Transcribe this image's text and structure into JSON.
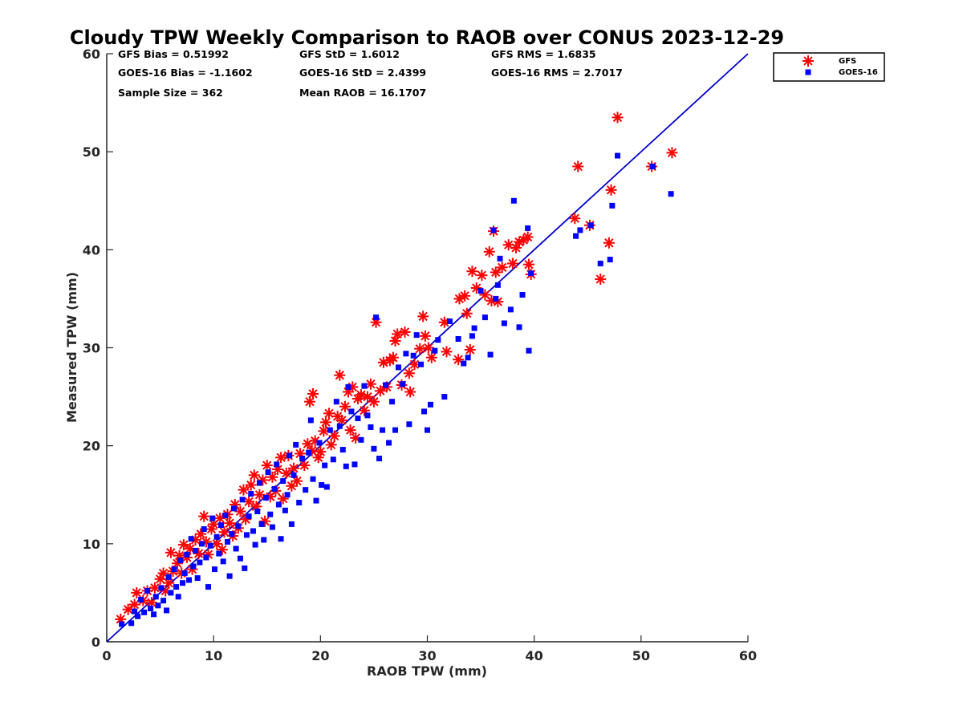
{
  "chart_data": {
    "type": "scatter",
    "title": "Cloudy TPW Weekly Comparison to RAOB over CONUS 2023-12-29",
    "xlabel": "RAOB TPW (mm)",
    "ylabel": "Measured TPW (mm)",
    "xlim": [
      0,
      60
    ],
    "ylim": [
      0,
      60
    ],
    "xticks": [
      "0",
      "10",
      "20",
      "30",
      "40",
      "50",
      "60"
    ],
    "yticks": [
      "0",
      "10",
      "20",
      "30",
      "40",
      "50",
      "60"
    ],
    "grid": false,
    "legend_position": "outside-top-right",
    "reference_line": {
      "x": [
        0,
        60
      ],
      "y": [
        0,
        60
      ],
      "color": "#0000cc"
    },
    "stats": {
      "gfs_bias": "GFS Bias = 0.51992",
      "gfs_std": "GFS StD = 1.6012",
      "gfs_rms": "GFS RMS = 1.6835",
      "goes_bias": "GOES-16 Bias = -1.1602",
      "goes_std": "GOES-16 StD = 2.4399",
      "goes_rms": "GOES-16 RMS = 2.7017",
      "sample_size": "Sample Size = 362",
      "mean_raob": "Mean RAOB = 16.1707"
    },
    "series": [
      {
        "name": "GFS",
        "marker": "asterisk",
        "color": "#ff0000",
        "points": [
          [
            1.3,
            2.3
          ],
          [
            2.0,
            3.3
          ],
          [
            2.6,
            3.8
          ],
          [
            2.8,
            5.0
          ],
          [
            3.4,
            4.2
          ],
          [
            3.8,
            5.2
          ],
          [
            4.2,
            4.0
          ],
          [
            4.5,
            5.5
          ],
          [
            5.0,
            6.4
          ],
          [
            5.3,
            7.0
          ],
          [
            5.5,
            5.2
          ],
          [
            5.8,
            6.0
          ],
          [
            6.0,
            9.1
          ],
          [
            6.2,
            7.2
          ],
          [
            6.6,
            8.0
          ],
          [
            6.8,
            8.8
          ],
          [
            7.0,
            7.0
          ],
          [
            7.2,
            9.9
          ],
          [
            7.5,
            8.6
          ],
          [
            7.8,
            9.5
          ],
          [
            8.0,
            7.4
          ],
          [
            8.3,
            10.4
          ],
          [
            8.6,
            9.0
          ],
          [
            8.8,
            11.0
          ],
          [
            9.1,
            12.8
          ],
          [
            9.3,
            10.2
          ],
          [
            9.5,
            8.9
          ],
          [
            9.8,
            11.5
          ],
          [
            10.0,
            12.0
          ],
          [
            10.3,
            10.0
          ],
          [
            10.6,
            12.6
          ],
          [
            10.8,
            9.4
          ],
          [
            11.0,
            11.2
          ],
          [
            11.3,
            13.0
          ],
          [
            11.5,
            12.1
          ],
          [
            11.8,
            10.8
          ],
          [
            12.0,
            14.0
          ],
          [
            12.3,
            11.6
          ],
          [
            12.5,
            13.3
          ],
          [
            12.8,
            15.5
          ],
          [
            13.0,
            12.5
          ],
          [
            13.3,
            14.3
          ],
          [
            13.5,
            16.0
          ],
          [
            13.8,
            17.0
          ],
          [
            14.0,
            13.8
          ],
          [
            14.3,
            15.0
          ],
          [
            14.6,
            16.5
          ],
          [
            14.8,
            12.3
          ],
          [
            15.0,
            18.0
          ],
          [
            15.3,
            14.8
          ],
          [
            15.5,
            16.8
          ],
          [
            15.8,
            15.4
          ],
          [
            16.0,
            17.6
          ],
          [
            16.3,
            18.8
          ],
          [
            16.5,
            14.6
          ],
          [
            16.8,
            17.2
          ],
          [
            17.0,
            19.0
          ],
          [
            17.3,
            15.9
          ],
          [
            17.5,
            17.7
          ],
          [
            17.8,
            16.4
          ],
          [
            18.1,
            19.2
          ],
          [
            18.5,
            18.0
          ],
          [
            18.8,
            20.2
          ],
          [
            19.0,
            24.5
          ],
          [
            19.2,
            19.5
          ],
          [
            19.3,
            25.3
          ],
          [
            19.5,
            20.5
          ],
          [
            19.8,
            18.8
          ],
          [
            20.0,
            19.4
          ],
          [
            20.3,
            21.5
          ],
          [
            20.5,
            22.4
          ],
          [
            20.8,
            23.3
          ],
          [
            21.0,
            20.1
          ],
          [
            21.3,
            21.0
          ],
          [
            21.6,
            23.0
          ],
          [
            21.8,
            27.2
          ],
          [
            22.0,
            22.6
          ],
          [
            22.3,
            24.0
          ],
          [
            22.6,
            25.5
          ],
          [
            22.8,
            21.6
          ],
          [
            23.0,
            26.0
          ],
          [
            23.3,
            20.8
          ],
          [
            23.5,
            24.8
          ],
          [
            23.8,
            25.2
          ],
          [
            24.1,
            23.6
          ],
          [
            24.4,
            25.0
          ],
          [
            24.7,
            26.3
          ],
          [
            25.0,
            24.5
          ],
          [
            25.2,
            32.6
          ],
          [
            25.6,
            25.6
          ],
          [
            25.9,
            28.5
          ],
          [
            26.2,
            26.0
          ],
          [
            26.5,
            28.7
          ],
          [
            26.8,
            29.0
          ],
          [
            27.0,
            30.7
          ],
          [
            27.2,
            31.4
          ],
          [
            27.6,
            26.2
          ],
          [
            27.9,
            31.6
          ],
          [
            28.3,
            27.4
          ],
          [
            28.4,
            25.5
          ],
          [
            28.8,
            28.3
          ],
          [
            29.3,
            29.9
          ],
          [
            29.6,
            33.2
          ],
          [
            29.8,
            31.2
          ],
          [
            30.1,
            30.0
          ],
          [
            30.4,
            29.0
          ],
          [
            31.6,
            32.6
          ],
          [
            31.8,
            29.6
          ],
          [
            32.9,
            28.8
          ],
          [
            33.0,
            35.0
          ],
          [
            33.5,
            35.3
          ],
          [
            33.7,
            33.5
          ],
          [
            34.0,
            29.8
          ],
          [
            34.2,
            37.8
          ],
          [
            34.6,
            36.1
          ],
          [
            35.1,
            37.4
          ],
          [
            35.4,
            35.4
          ],
          [
            35.8,
            39.8
          ],
          [
            36.0,
            34.8
          ],
          [
            36.2,
            41.9
          ],
          [
            36.4,
            37.7
          ],
          [
            36.6,
            34.7
          ],
          [
            37.0,
            38.2
          ],
          [
            37.6,
            40.5
          ],
          [
            38.0,
            38.6
          ],
          [
            38.3,
            40.2
          ],
          [
            38.6,
            40.8
          ],
          [
            39.0,
            41.0
          ],
          [
            39.4,
            41.3
          ],
          [
            39.5,
            38.5
          ],
          [
            39.7,
            37.5
          ],
          [
            43.8,
            43.2
          ],
          [
            44.1,
            48.5
          ],
          [
            45.2,
            42.5
          ],
          [
            46.2,
            37.0
          ],
          [
            47.0,
            40.7
          ],
          [
            47.2,
            46.1
          ],
          [
            47.8,
            53.5
          ],
          [
            51.0,
            48.5
          ],
          [
            52.9,
            49.9
          ]
        ]
      },
      {
        "name": "GOES-16",
        "marker": "square",
        "color": "#0000ff",
        "points": [
          [
            1.4,
            1.8
          ],
          [
            2.3,
            1.9
          ],
          [
            2.6,
            3.1
          ],
          [
            2.9,
            2.6
          ],
          [
            3.2,
            4.3
          ],
          [
            3.5,
            3.0
          ],
          [
            3.8,
            5.2
          ],
          [
            4.1,
            3.4
          ],
          [
            4.4,
            2.8
          ],
          [
            4.6,
            4.6
          ],
          [
            4.8,
            3.7
          ],
          [
            5.1,
            5.5
          ],
          [
            5.3,
            4.2
          ],
          [
            5.6,
            3.2
          ],
          [
            5.8,
            6.6
          ],
          [
            6.0,
            5.0
          ],
          [
            6.3,
            7.4
          ],
          [
            6.5,
            5.6
          ],
          [
            6.7,
            4.6
          ],
          [
            6.9,
            8.3
          ],
          [
            7.1,
            6.0
          ],
          [
            7.3,
            7.0
          ],
          [
            7.5,
            8.9
          ],
          [
            7.7,
            6.3
          ],
          [
            7.9,
            10.5
          ],
          [
            8.1,
            7.7
          ],
          [
            8.3,
            9.3
          ],
          [
            8.5,
            6.5
          ],
          [
            8.7,
            8.1
          ],
          [
            8.9,
            10.0
          ],
          [
            9.1,
            11.5
          ],
          [
            9.3,
            8.6
          ],
          [
            9.5,
            5.6
          ],
          [
            9.7,
            9.8
          ],
          [
            9.9,
            12.6
          ],
          [
            10.1,
            7.4
          ],
          [
            10.3,
            10.7
          ],
          [
            10.5,
            9.0
          ],
          [
            10.7,
            11.9
          ],
          [
            10.9,
            8.2
          ],
          [
            11.1,
            12.9
          ],
          [
            11.3,
            10.2
          ],
          [
            11.5,
            6.7
          ],
          [
            11.7,
            11.0
          ],
          [
            11.9,
            13.6
          ],
          [
            12.1,
            9.5
          ],
          [
            12.3,
            11.8
          ],
          [
            12.5,
            8.5
          ],
          [
            12.7,
            14.5
          ],
          [
            12.9,
            7.5
          ],
          [
            13.1,
            10.9
          ],
          [
            13.3,
            12.8
          ],
          [
            13.5,
            15.1
          ],
          [
            13.7,
            11.3
          ],
          [
            13.9,
            9.9
          ],
          [
            14.1,
            13.3
          ],
          [
            14.3,
            16.2
          ],
          [
            14.5,
            12.0
          ],
          [
            14.7,
            10.4
          ],
          [
            14.9,
            14.7
          ],
          [
            15.1,
            17.3
          ],
          [
            15.3,
            13.0
          ],
          [
            15.5,
            11.7
          ],
          [
            15.7,
            15.6
          ],
          [
            15.9,
            18.1
          ],
          [
            16.1,
            14.0
          ],
          [
            16.3,
            10.5
          ],
          [
            16.5,
            16.4
          ],
          [
            16.7,
            13.4
          ],
          [
            16.9,
            15.0
          ],
          [
            17.1,
            19.0
          ],
          [
            17.3,
            12.0
          ],
          [
            17.5,
            17.0
          ],
          [
            17.7,
            20.1
          ],
          [
            18.0,
            14.2
          ],
          [
            18.3,
            18.7
          ],
          [
            18.6,
            15.5
          ],
          [
            18.9,
            19.3
          ],
          [
            19.1,
            22.6
          ],
          [
            19.3,
            16.6
          ],
          [
            19.6,
            14.4
          ],
          [
            19.9,
            20.3
          ],
          [
            20.1,
            16.0
          ],
          [
            20.4,
            18.0
          ],
          [
            20.6,
            15.8
          ],
          [
            20.9,
            21.6
          ],
          [
            21.2,
            18.6
          ],
          [
            21.5,
            24.5
          ],
          [
            21.8,
            22.0
          ],
          [
            22.1,
            19.6
          ],
          [
            22.4,
            17.9
          ],
          [
            22.6,
            26.0
          ],
          [
            22.9,
            23.5
          ],
          [
            23.2,
            18.1
          ],
          [
            23.5,
            22.8
          ],
          [
            23.8,
            20.6
          ],
          [
            24.1,
            26.1
          ],
          [
            24.4,
            23.1
          ],
          [
            24.7,
            21.9
          ],
          [
            25.0,
            19.7
          ],
          [
            25.2,
            33.1
          ],
          [
            25.5,
            18.7
          ],
          [
            25.8,
            21.6
          ],
          [
            26.1,
            26.2
          ],
          [
            26.4,
            20.3
          ],
          [
            26.7,
            24.5
          ],
          [
            27.0,
            21.6
          ],
          [
            27.3,
            28.0
          ],
          [
            27.7,
            26.3
          ],
          [
            28.0,
            29.4
          ],
          [
            28.3,
            22.2
          ],
          [
            28.7,
            29.2
          ],
          [
            29.0,
            31.3
          ],
          [
            29.4,
            28.3
          ],
          [
            29.7,
            23.5
          ],
          [
            30.0,
            21.6
          ],
          [
            30.3,
            24.2
          ],
          [
            30.7,
            29.7
          ],
          [
            31.0,
            30.8
          ],
          [
            31.6,
            25.0
          ],
          [
            32.1,
            32.7
          ],
          [
            32.9,
            30.9
          ],
          [
            33.4,
            28.4
          ],
          [
            33.8,
            29.0
          ],
          [
            34.2,
            31.2
          ],
          [
            34.4,
            32.0
          ],
          [
            35.0,
            35.8
          ],
          [
            35.4,
            33.1
          ],
          [
            35.9,
            29.3
          ],
          [
            36.2,
            42.0
          ],
          [
            36.4,
            35.0
          ],
          [
            36.6,
            36.4
          ],
          [
            36.8,
            39.1
          ],
          [
            37.2,
            32.5
          ],
          [
            37.8,
            33.9
          ],
          [
            38.1,
            45.0
          ],
          [
            38.6,
            32.1
          ],
          [
            38.9,
            35.4
          ],
          [
            39.4,
            42.2
          ],
          [
            39.5,
            29.7
          ],
          [
            39.7,
            37.6
          ],
          [
            43.9,
            41.4
          ],
          [
            44.3,
            42.0
          ],
          [
            45.3,
            42.5
          ],
          [
            46.2,
            38.6
          ],
          [
            47.1,
            39.0
          ],
          [
            47.3,
            44.5
          ],
          [
            47.8,
            49.6
          ],
          [
            51.1,
            48.5
          ],
          [
            52.8,
            45.7
          ]
        ]
      }
    ]
  }
}
